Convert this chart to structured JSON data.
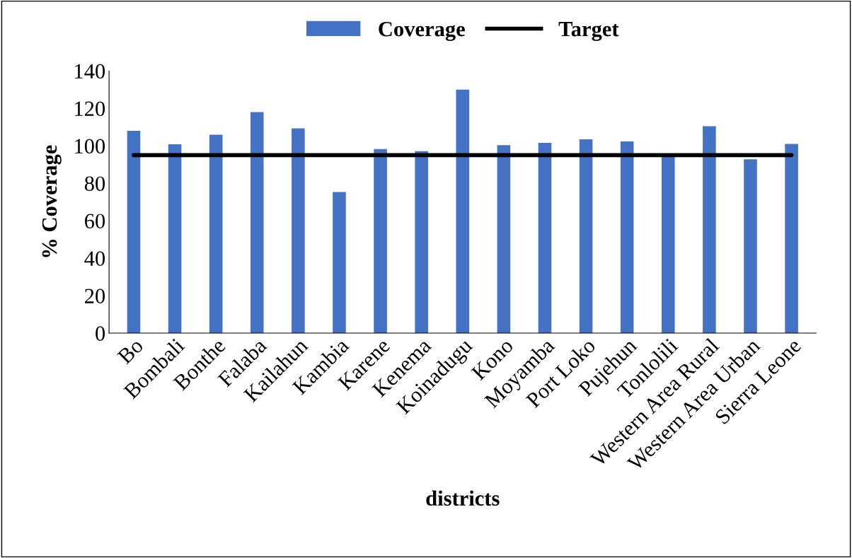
{
  "chart_data": {
    "type": "bar",
    "xlabel": "districts",
    "ylabel": "% Coverage",
    "categories": [
      "Bo",
      "Bombali",
      "Bonthe",
      "Falaba",
      "Kailahun",
      "Kambia",
      "Karene",
      "Kenema",
      "Koinadugu",
      "Kono",
      "Moyamba",
      "Port Loko",
      "Pujehun",
      "Tonlolili",
      "Western Area Rural",
      "Western Area Urban",
      "Sierra Leone"
    ],
    "series": [
      {
        "name": "Coverage",
        "color": "#4472c4",
        "values": [
          108,
          100.8,
          105.9,
          118,
          109.3,
          75.3,
          98.3,
          97.1,
          130,
          100.3,
          101.6,
          103.5,
          102.3,
          95,
          110.4,
          92.8,
          101
        ]
      },
      {
        "name": "Target",
        "type": "line",
        "color": "#000000",
        "values": [
          95,
          95,
          95,
          95,
          95,
          95,
          95,
          95,
          95,
          95,
          95,
          95,
          95,
          95,
          95,
          95,
          95
        ]
      }
    ],
    "ylim": [
      0,
      140
    ],
    "yticks": [
      0,
      20,
      40,
      60,
      80,
      100,
      120,
      140
    ],
    "grid": false,
    "legend": "top",
    "marker": "none",
    "line_style": "solid"
  }
}
